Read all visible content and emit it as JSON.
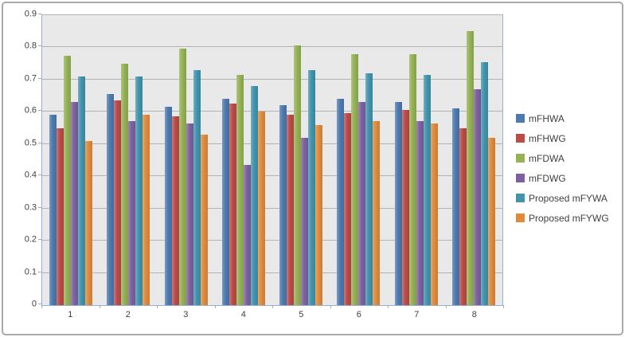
{
  "chart_data": {
    "type": "bar",
    "title": "",
    "xlabel": "",
    "ylabel": "",
    "categories": [
      "1",
      "2",
      "3",
      "4",
      "5",
      "6",
      "7",
      "8"
    ],
    "series": [
      {
        "name": "mFHWA",
        "color": "#4c79b0",
        "values": [
          0.59,
          0.655,
          0.615,
          0.64,
          0.62,
          0.64,
          0.63,
          0.61
        ]
      },
      {
        "name": "mFHWG",
        "color": "#ba4b47",
        "values": [
          0.55,
          0.635,
          0.585,
          0.625,
          0.59,
          0.595,
          0.605,
          0.55
        ]
      },
      {
        "name": "mFDWA",
        "color": "#94b153",
        "values": [
          0.775,
          0.75,
          0.795,
          0.715,
          0.805,
          0.78,
          0.78,
          0.85
        ]
      },
      {
        "name": "mFDWG",
        "color": "#7c60a0",
        "values": [
          0.63,
          0.57,
          0.565,
          0.435,
          0.52,
          0.63,
          0.57,
          0.67
        ]
      },
      {
        "name": "Proposed mFYWA",
        "color": "#4194ac",
        "values": [
          0.71,
          0.71,
          0.73,
          0.68,
          0.73,
          0.72,
          0.715,
          0.755
        ]
      },
      {
        "name": "Proposed mFYWG",
        "color": "#e08a3c",
        "values": [
          0.51,
          0.59,
          0.53,
          0.6,
          0.56,
          0.57,
          0.565,
          0.52
        ]
      }
    ],
    "ylim": [
      0,
      0.9
    ],
    "ytick_step": 0.1,
    "ytick_labels": [
      "0",
      "0.1",
      "0.2",
      "0.3",
      "0.4",
      "0.5",
      "0.6",
      "0.7",
      "0.8",
      "0.9"
    ],
    "grid": true,
    "legend_position": "right",
    "colors": {
      "plot_background": "#e9e9e9",
      "gridline": "#b3b3b3",
      "axis_border": "#98aecf",
      "outer_border": "#a9a9a9",
      "text": "#3f3f3f"
    }
  }
}
